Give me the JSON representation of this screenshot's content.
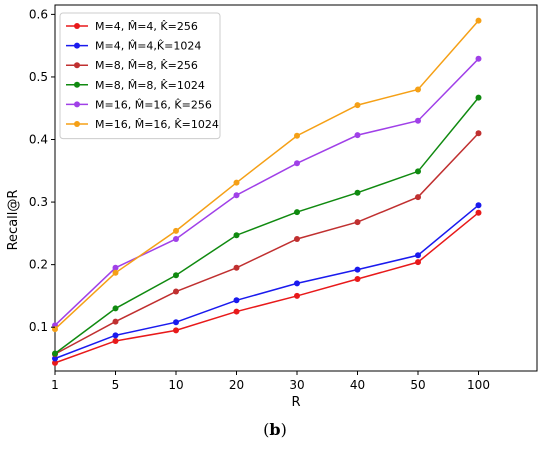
{
  "chart_data": {
    "type": "line",
    "x": [
      "1",
      "5",
      "10",
      "20",
      "30",
      "40",
      "50",
      "100"
    ],
    "xlabel": "R",
    "ylabel": "Recall@R",
    "ylim": [
      0.03,
      0.615
    ],
    "yticks": [
      "0.1",
      "0.2",
      "0.3",
      "0.4",
      "0.5",
      "0.6"
    ],
    "grid": false,
    "legend_position": "top-left",
    "series": [
      {
        "name": "M=4, M̂=4, K̂=256",
        "color": "#e8191a",
        "values": [
          0.043,
          0.078,
          0.095,
          0.125,
          0.15,
          0.177,
          0.204,
          0.283
        ]
      },
      {
        "name": "M=4, M̂=4,K̂=1024",
        "color": "#1a1aee",
        "values": [
          0.05,
          0.087,
          0.108,
          0.143,
          0.17,
          0.192,
          0.215,
          0.295
        ]
      },
      {
        "name": "M=8, M̂=8, K̂=256",
        "color": "#c03030",
        "values": [
          0.057,
          0.109,
          0.157,
          0.195,
          0.241,
          0.268,
          0.308,
          0.41
        ]
      },
      {
        "name": "M=8, M̂=8, K̂=1024",
        "color": "#108a10",
        "values": [
          0.058,
          0.13,
          0.183,
          0.247,
          0.284,
          0.315,
          0.349,
          0.467
        ]
      },
      {
        "name": "M=16, M̂=16, K̂=256",
        "color": "#a040e8",
        "values": [
          0.103,
          0.195,
          0.241,
          0.311,
          0.362,
          0.407,
          0.43,
          0.529
        ]
      },
      {
        "name": "M=16, M̂=16, K̂=1024",
        "color": "#f5a016",
        "values": [
          0.097,
          0.187,
          0.254,
          0.331,
          0.406,
          0.455,
          0.48,
          0.59
        ]
      }
    ]
  },
  "caption": {
    "open": "(",
    "letter": "b",
    "close": ")"
  }
}
